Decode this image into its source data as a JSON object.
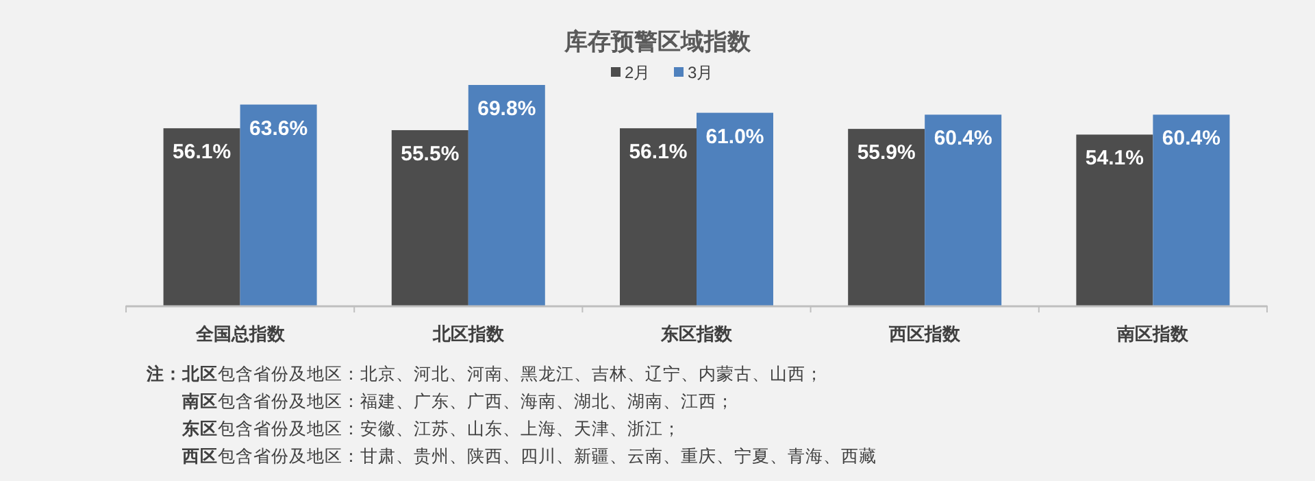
{
  "chart_data": {
    "type": "bar",
    "title": "库存预警区域指数",
    "categories": [
      "全国总指数",
      "北区指数",
      "东区指数",
      "西区指数",
      "南区指数"
    ],
    "series": [
      {
        "name": "2月",
        "color": "#4d4d4d",
        "values": [
          56.1,
          55.5,
          56.1,
          55.9,
          54.1
        ],
        "value_labels": [
          "56.1%",
          "55.5%",
          "56.1%",
          "55.9%",
          "54.1%"
        ]
      },
      {
        "name": "3月",
        "color": "#4f81bd",
        "values": [
          63.6,
          69.8,
          61.0,
          60.4,
          60.4
        ],
        "value_labels": [
          "63.6%",
          "69.8%",
          "61.0%",
          "60.4%",
          "60.4%"
        ]
      }
    ],
    "legend": "top",
    "tick_labels": "x",
    "annotations": [
      "**注：**",
      "**北区**包含省份及地区：北京、河北、河南、黑龙江、吉林、辽宁、内蒙古、山西；",
      "**南区**包含省份及地区：福建、广东、广西、海南、湖北、湖南、江西；",
      "**东区**包含省份及地区：安徽、江苏、山东、上海、天津、浙江；",
      "**西区**包含省份及地区：甘肃、贵州、陕西、四川、新疆、云南、重庆、宁夏、青海、西藏"
    ]
  }
}
